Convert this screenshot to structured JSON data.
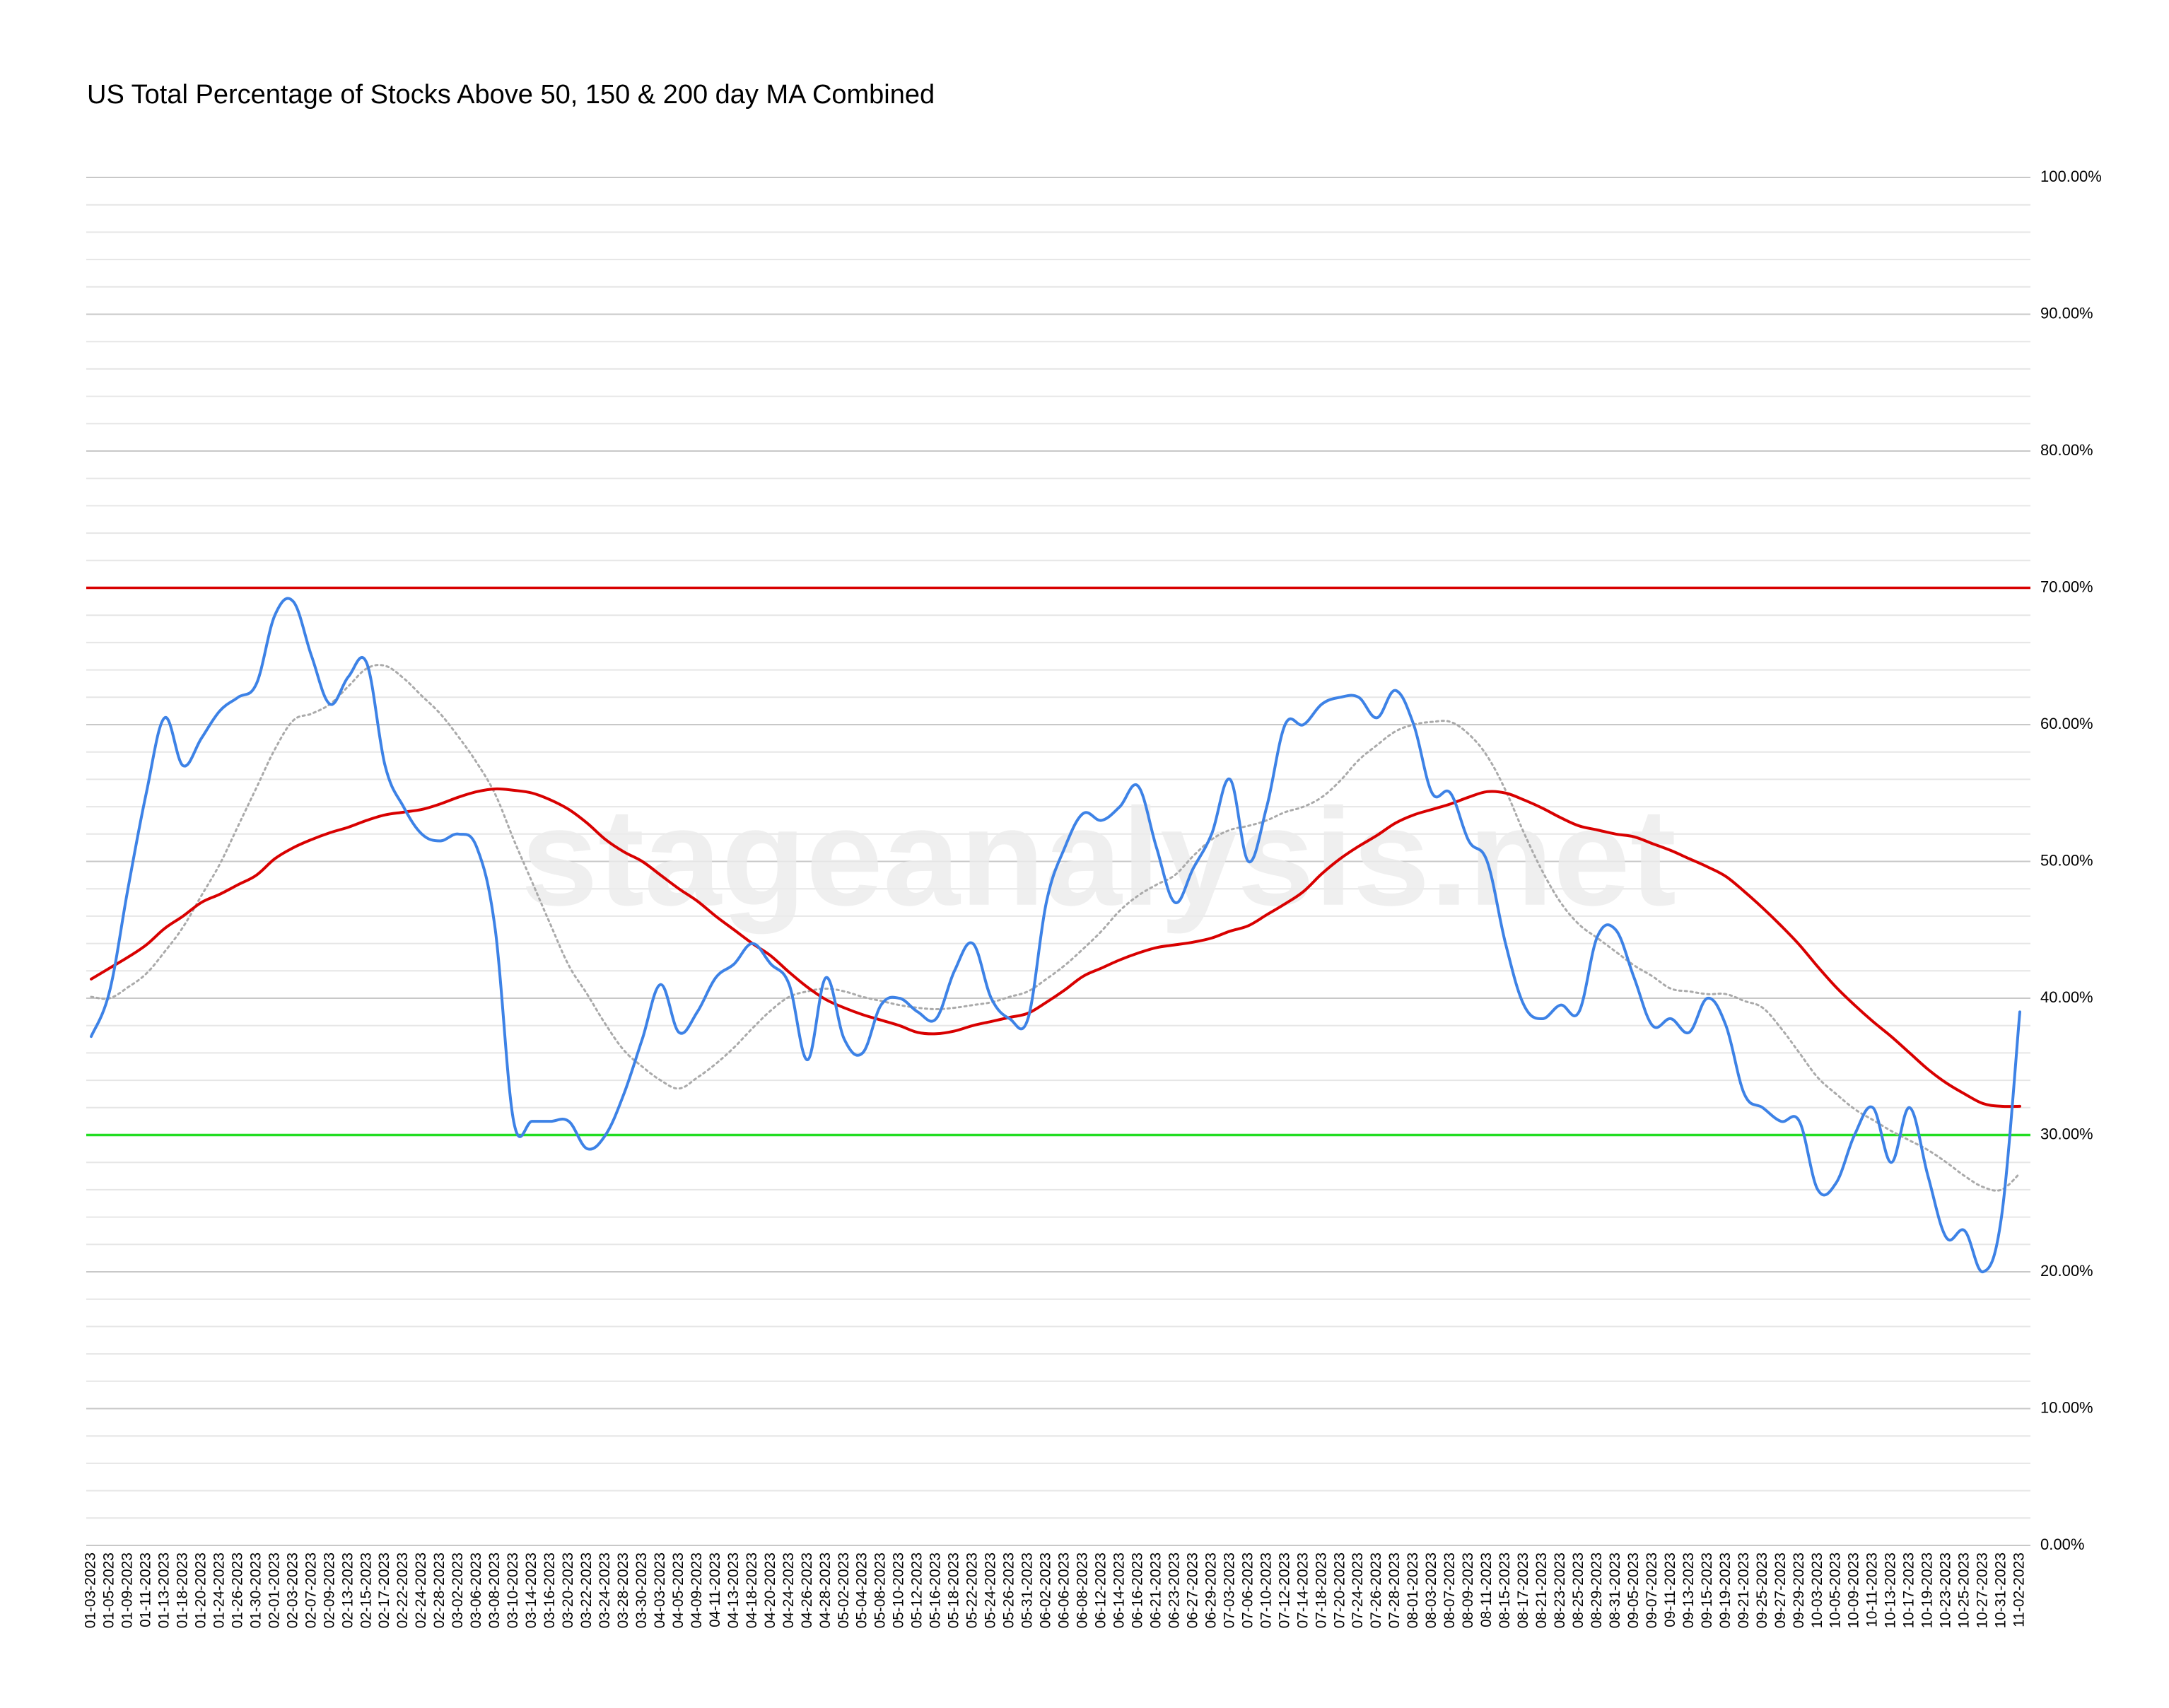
{
  "chart_data": {
    "type": "line",
    "title": "US Total Percentage of Stocks Above 50, 150 & 200 day MA Combined",
    "watermark": "stageanalysis.net",
    "categories": [
      "01-03-2023",
      "01-05-2023",
      "01-09-2023",
      "01-11-2023",
      "01-13-2023",
      "01-18-2023",
      "01-20-2023",
      "01-24-2023",
      "01-26-2023",
      "01-30-2023",
      "02-01-2023",
      "02-03-2023",
      "02-07-2023",
      "02-09-2023",
      "02-13-2023",
      "02-15-2023",
      "02-17-2023",
      "02-22-2023",
      "02-24-2023",
      "02-28-2023",
      "03-02-2023",
      "03-06-2023",
      "03-08-2023",
      "03-10-2023",
      "03-14-2023",
      "03-16-2023",
      "03-20-2023",
      "03-22-2023",
      "03-24-2023",
      "03-28-2023",
      "03-30-2023",
      "04-03-2023",
      "04-05-2023",
      "04-09-2023",
      "04-11-2023",
      "04-13-2023",
      "04-18-2023",
      "04-20-2023",
      "04-24-2023",
      "04-26-2023",
      "04-28-2023",
      "05-02-2023",
      "05-04-2023",
      "05-08-2023",
      "05-10-2023",
      "05-12-2023",
      "05-16-2023",
      "05-18-2023",
      "05-22-2023",
      "05-24-2023",
      "05-26-2023",
      "05-31-2023",
      "06-02-2023",
      "06-06-2023",
      "06-08-2023",
      "06-12-2023",
      "06-14-2023",
      "06-16-2023",
      "06-21-2023",
      "06-23-2023",
      "06-27-2023",
      "06-29-2023",
      "07-03-2023",
      "07-06-2023",
      "07-10-2023",
      "07-12-2023",
      "07-14-2023",
      "07-18-2023",
      "07-20-2023",
      "07-24-2023",
      "07-26-2023",
      "07-28-2023",
      "08-01-2023",
      "08-03-2023",
      "08-07-2023",
      "08-09-2023",
      "08-11-2023",
      "08-15-2023",
      "08-17-2023",
      "08-21-2023",
      "08-23-2023",
      "08-25-2023",
      "08-29-2023",
      "08-31-2023",
      "09-05-2023",
      "09-07-2023",
      "09-11-2023",
      "09-13-2023",
      "09-15-2023",
      "09-19-2023",
      "09-21-2023",
      "09-25-2023",
      "09-27-2023",
      "09-29-2023",
      "10-03-2023",
      "10-05-2023",
      "10-09-2023",
      "10-11-2023",
      "10-13-2023",
      "10-17-2023",
      "10-19-2023",
      "10-23-2023",
      "10-25-2023",
      "10-27-2023",
      "10-31-2023",
      "11-02-2023"
    ],
    "series": [
      {
        "color": "#aaaaaa",
        "dashed": true,
        "values": [
          40.1,
          40,
          40.8,
          41.8,
          43.4,
          45.2,
          47.5,
          49.8,
          52.6,
          55.4,
          58.2,
          60.3,
          60.8,
          61.5,
          62.8,
          64.1,
          64.3,
          63.4,
          62.1,
          60.8,
          59.1,
          57.2,
          54.9,
          51.6,
          48.5,
          45.4,
          42.4,
          40.3,
          38.1,
          36.2,
          35,
          34,
          33.4,
          34.2,
          35.2,
          36.4,
          37.8,
          39.1,
          40.1,
          40.5,
          40.7,
          40.5,
          40.1,
          39.8,
          39.5,
          39.3,
          39.2,
          39.3,
          39.5,
          39.7,
          40.1,
          40.5,
          41.4,
          42.4,
          43.6,
          44.9,
          46.4,
          47.5,
          48.3,
          49,
          50.4,
          51.6,
          52.3,
          52.6,
          53,
          53.6,
          54,
          54.7,
          55.9,
          57.4,
          58.5,
          59.5,
          60,
          60.2,
          60.2,
          59.3,
          57.7,
          55.2,
          52.1,
          49.3,
          47,
          45.4,
          44.4,
          43.4,
          42.4,
          41.6,
          40.7,
          40.5,
          40.3,
          40.3,
          39.8,
          39.3,
          37.8,
          36,
          34.2,
          33,
          31.9,
          31.1,
          30.3,
          29.6,
          28.9,
          28,
          27,
          26.2,
          26,
          27.2
        ]
      },
      {
        "color": "#d80000",
        "values": [
          41.4,
          42.2,
          43,
          43.9,
          45.1,
          46,
          47,
          47.6,
          48.3,
          49,
          50.2,
          51,
          51.6,
          52.1,
          52.5,
          53,
          53.4,
          53.6,
          53.8,
          54.2,
          54.7,
          55.1,
          55.3,
          55.2,
          55,
          54.5,
          53.8,
          52.8,
          51.6,
          50.7,
          50,
          49,
          48,
          47.1,
          46,
          45,
          44,
          43.1,
          41.9,
          40.8,
          39.9,
          39.3,
          38.8,
          38.4,
          38,
          37.5,
          37.4,
          37.6,
          38,
          38.3,
          38.6,
          38.9,
          39.7,
          40.6,
          41.6,
          42.2,
          42.8,
          43.3,
          43.7,
          43.9,
          44.1,
          44.4,
          44.9,
          45.3,
          46.1,
          46.9,
          47.8,
          49.1,
          50.2,
          51.1,
          51.9,
          52.8,
          53.4,
          53.8,
          54.2,
          54.7,
          55.1,
          55,
          54.5,
          53.9,
          53.2,
          52.6,
          52.3,
          52,
          51.8,
          51.3,
          50.8,
          50.2,
          49.6,
          48.9,
          47.8,
          46.6,
          45.3,
          43.9,
          42.3,
          40.8,
          39.5,
          38.3,
          37.2,
          36,
          34.8,
          33.8,
          33,
          32.3,
          32.1,
          32.1
        ]
      },
      {
        "color": "#3d82e6",
        "values": [
          37.2,
          40.5,
          48,
          55,
          60.5,
          57,
          59,
          61,
          62,
          63,
          68,
          69,
          65,
          61.5,
          63.5,
          64.5,
          57,
          54,
          52,
          51.5,
          52,
          51,
          45,
          31,
          31,
          31,
          31,
          29,
          30,
          33,
          37,
          41,
          37.5,
          39,
          41.5,
          42.5,
          44,
          42.5,
          41,
          35.5,
          41.5,
          37,
          36,
          39.5,
          40,
          39,
          38.5,
          42,
          44,
          40,
          38.5,
          38.5,
          47,
          51,
          53.5,
          53,
          54,
          55.5,
          51,
          47,
          49.5,
          52,
          56,
          50,
          54,
          60,
          60,
          61.5,
          62,
          62,
          60.5,
          62.5,
          60,
          55,
          55,
          51.5,
          50,
          44,
          39.5,
          38.5,
          39.5,
          39,
          44.5,
          45,
          41.5,
          38,
          38.5,
          37.5,
          40,
          38,
          33,
          32,
          31,
          31,
          26,
          26.5,
          30,
          32,
          28,
          32,
          27,
          22.5,
          23,
          20,
          24,
          39
        ]
      }
    ],
    "hlines": [
      {
        "value": 70,
        "color": "#d80000"
      },
      {
        "value": 30,
        "color": "#22dd22"
      }
    ],
    "ylim": [
      0,
      100
    ],
    "yticks": [
      {
        "value": 0,
        "label": "0.00%"
      },
      {
        "value": 10,
        "label": "10.00%"
      },
      {
        "value": 20,
        "label": "20.00%"
      },
      {
        "value": 30,
        "label": "30.00%"
      },
      {
        "value": 40,
        "label": "40.00%"
      },
      {
        "value": 50,
        "label": "50.00%"
      },
      {
        "value": 60,
        "label": "60.00%"
      },
      {
        "value": 70,
        "label": "70.00%"
      },
      {
        "value": 80,
        "label": "80.00%"
      },
      {
        "value": 90,
        "label": "90.00%"
      },
      {
        "value": 100,
        "label": "100.00%"
      }
    ],
    "minor_grid_step": 2,
    "grid": true
  }
}
